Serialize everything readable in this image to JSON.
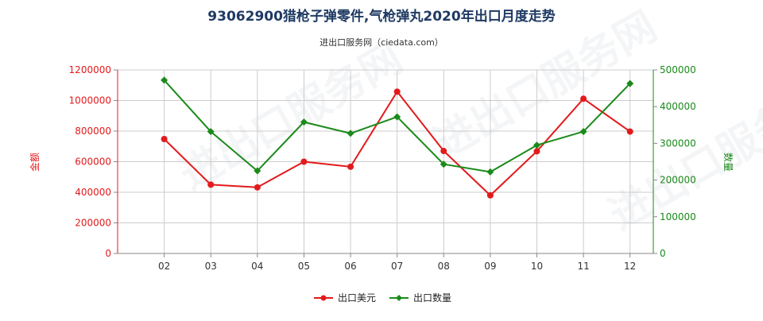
{
  "chart_data": {
    "type": "line",
    "title": "93062900猎枪子弹零件,气枪弹丸2020年出口月度走势",
    "subtitle": "进出口服务网（ciedata.com）",
    "watermark": "进出口服务网",
    "categories": [
      "02",
      "03",
      "04",
      "05",
      "06",
      "07",
      "08",
      "09",
      "10",
      "11",
      "12"
    ],
    "ylabel_left": "金额",
    "ylabel_right": "数量",
    "ylim_left": [
      0,
      1200000
    ],
    "ylim_right": [
      0,
      500000
    ],
    "yticks_left": [
      "0",
      "200000",
      "400000",
      "600000",
      "800000",
      "1000000",
      "1200000"
    ],
    "yticks_right": [
      "0",
      "100000",
      "200000",
      "300000",
      "400000",
      "500000"
    ],
    "grid": true,
    "legend_position": "bottom",
    "series": [
      {
        "name": "出口美元",
        "axis": "left",
        "color": "#e31a1c",
        "marker": "circle",
        "values": [
          748000,
          450000,
          432000,
          600000,
          567000,
          1058000,
          670000,
          380000,
          668000,
          1012000,
          797000
        ]
      },
      {
        "name": "出口数量",
        "axis": "right",
        "color": "#1a8a1a",
        "marker": "diamond",
        "values": [
          472000,
          332000,
          225000,
          358000,
          327000,
          372000,
          243000,
          222000,
          295000,
          332000,
          463000
        ]
      }
    ],
    "colors": {
      "left_axis": "#e31a1c",
      "right_axis": "#1a8a1a",
      "grid": "#cccccc",
      "axis_line": "#888888"
    }
  }
}
